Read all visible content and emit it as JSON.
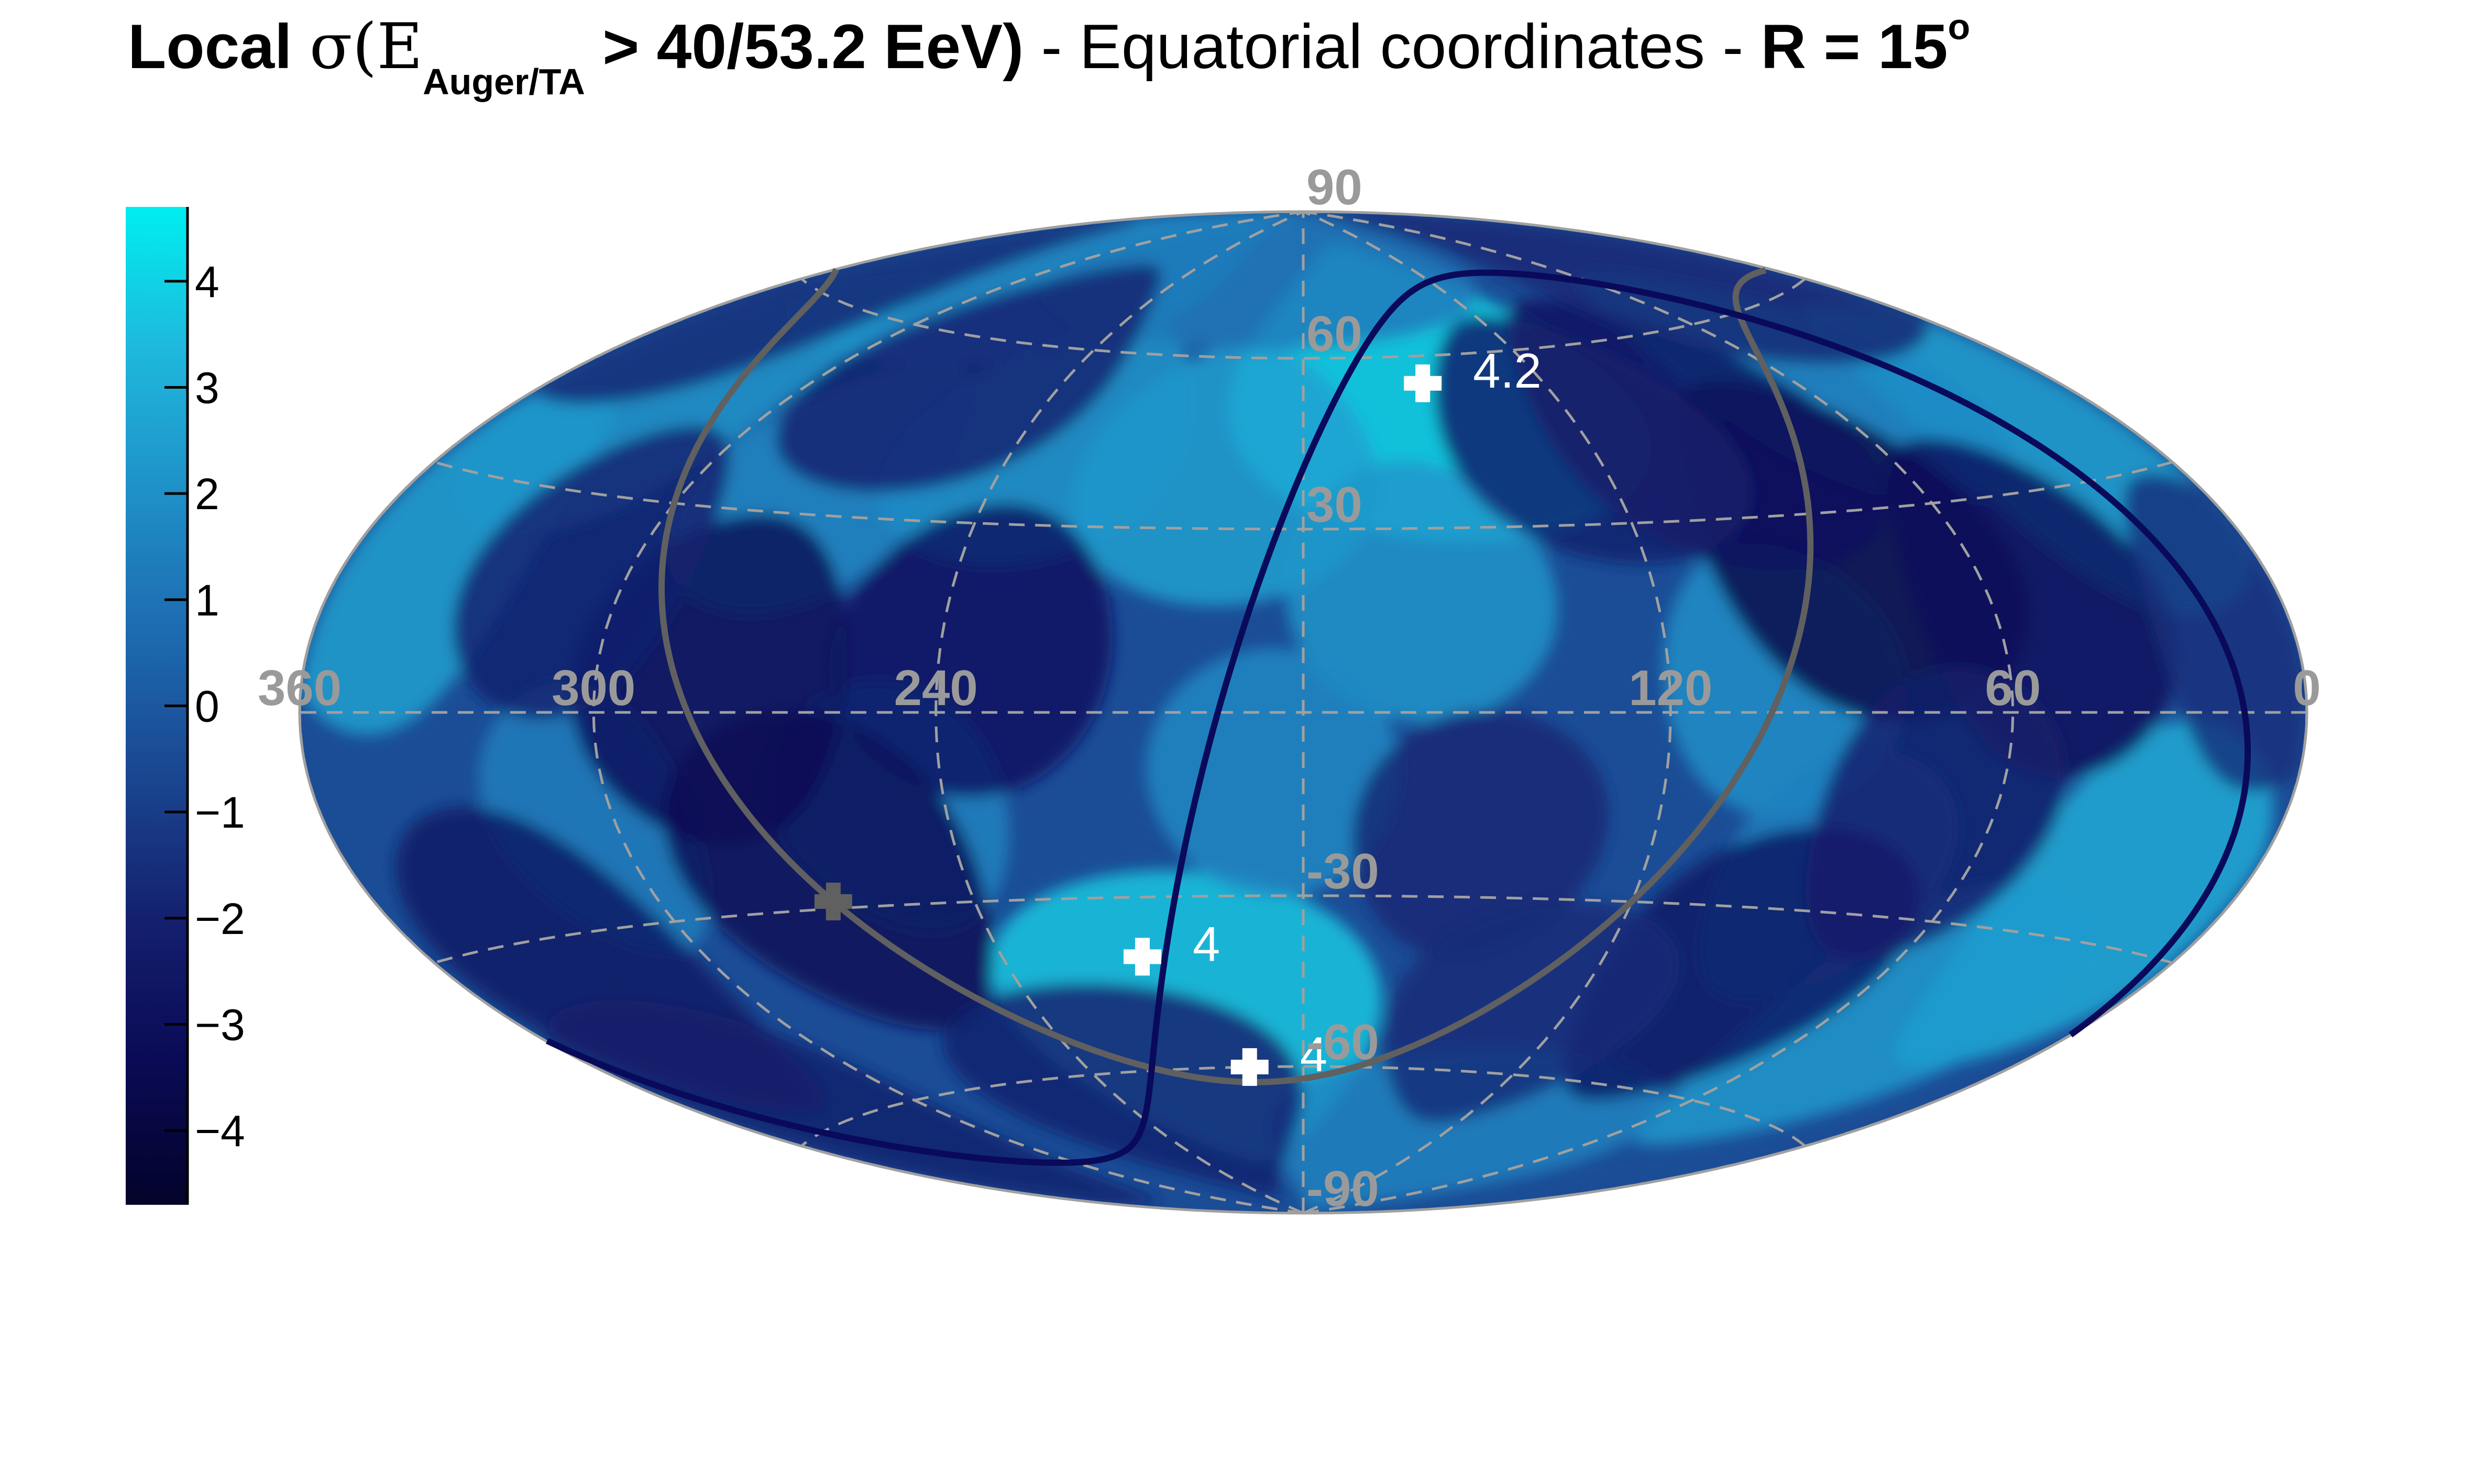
{
  "title": {
    "local": "Local",
    "sigma": "σ(E",
    "subscript": "Auger/TA",
    "threshold": " > 40/53.2 EeV)",
    "middle": " - Equatorial coordinates - ",
    "radius": "R = 15",
    "radius_sup": "o"
  },
  "colors": {
    "grid": "#a0a0a0",
    "galactic_plane": "#606060",
    "supergalactic_plane": "#0a0a5a",
    "marker": "#ffffff",
    "colormap": [
      "#03032a",
      "#0a0a55",
      "#14206e",
      "#1a4690",
      "#1d6ab0",
      "#1f90c8",
      "#1fb8dc",
      "#00eef0"
    ]
  },
  "chart_data": {
    "type": "heatmap",
    "projection": "Hammer-Aitoff",
    "x_ticks": [
      "360",
      "300",
      "240",
      "120",
      "60",
      "0"
    ],
    "x_tick_values": [
      360,
      300,
      240,
      120,
      60,
      0
    ],
    "y_ticks": [
      "90",
      "60",
      "30",
      "-30",
      "-60",
      "-90"
    ],
    "y_tick_values": [
      90,
      60,
      30,
      -30,
      -60,
      -90
    ],
    "xlim": [
      360,
      0
    ],
    "ylim": [
      -90,
      90
    ],
    "colorbar": {
      "range": [
        -4.7,
        4.7
      ],
      "ticks": [
        "4",
        "3",
        "2",
        "1",
        "0",
        "−1",
        "−2",
        "−3",
        "−4"
      ],
      "tick_values": [
        4,
        3,
        2,
        1,
        0,
        -1,
        -2,
        -3,
        -4
      ]
    },
    "hotspots": [
      {
        "ra": 150,
        "dec": 55,
        "sigma": 4.2,
        "label": "4.2"
      },
      {
        "ra": 212,
        "dec": -40,
        "sigma": 4.0,
        "label": "4"
      },
      {
        "ra": 195,
        "dec": -60,
        "sigma": 4.0,
        "label": "4"
      }
    ],
    "galactic_center": {
      "ra": 266.4,
      "dec": -28.9
    },
    "significance_blobs": [
      {
        "ra": 150,
        "dec": 55,
        "sigma": 4.2
      },
      {
        "ra": 205,
        "dec": -52,
        "sigma": 3.8
      },
      {
        "ra": 195,
        "dec": 40,
        "sigma": 2.6
      },
      {
        "ra": 235,
        "dec": 45,
        "sigma": 2.2
      },
      {
        "ra": 300,
        "dec": 75,
        "sigma": 2.0
      },
      {
        "ra": 160,
        "dec": 20,
        "sigma": 2.2
      },
      {
        "ra": 100,
        "dec": 5,
        "sigma": 2.0
      },
      {
        "ra": 185,
        "dec": -10,
        "sigma": 1.8
      },
      {
        "ra": 25,
        "dec": -25,
        "sigma": 3.0
      },
      {
        "ra": 45,
        "dec": -45,
        "sigma": 2.4
      },
      {
        "ra": 20,
        "dec": 35,
        "sigma": 2.6
      },
      {
        "ra": 55,
        "dec": 50,
        "sigma": 1.8
      },
      {
        "ra": 345,
        "dec": 20,
        "sigma": 2.6
      },
      {
        "ra": 330,
        "dec": 45,
        "sigma": 2.2
      },
      {
        "ra": 275,
        "dec": 35,
        "sigma": 1.8
      },
      {
        "ra": 305,
        "dec": -15,
        "sigma": 1.4
      },
      {
        "ra": 250,
        "dec": -15,
        "sigma": 1.6
      },
      {
        "ra": 120,
        "dec": -75,
        "sigma": 1.6
      },
      {
        "ra": 85,
        "dec": -25,
        "sigma": 1.5
      },
      {
        "ra": 200,
        "dec": 80,
        "sigma": 1.2
      },
      {
        "ra": 80,
        "dec": 25,
        "sigma": -3.8
      },
      {
        "ra": 50,
        "dec": 15,
        "sigma": -3.0
      },
      {
        "ra": 95,
        "dec": 45,
        "sigma": -2.8
      },
      {
        "ra": 280,
        "dec": 5,
        "sigma": -3.2
      },
      {
        "ra": 265,
        "dec": -25,
        "sigma": -3.4
      },
      {
        "ra": 330,
        "dec": -35,
        "sigma": -2.6
      },
      {
        "ra": 235,
        "dec": 10,
        "sigma": -2.8
      },
      {
        "ra": 120,
        "dec": 45,
        "sigma": -2.2
      },
      {
        "ra": 90,
        "dec": -40,
        "sigma": -2.6
      },
      {
        "ra": 70,
        "dec": -15,
        "sigma": -2.2
      },
      {
        "ra": 310,
        "dec": 20,
        "sigma": -2.0
      },
      {
        "ra": 25,
        "dec": 70,
        "sigma": -1.8
      },
      {
        "ra": 230,
        "dec": -65,
        "sigma": -2.0
      },
      {
        "ra": 150,
        "dec": -20,
        "sigma": -1.8
      },
      {
        "ra": 340,
        "dec": -60,
        "sigma": -2.2
      },
      {
        "ra": 130,
        "dec": -50,
        "sigma": -1.6
      },
      {
        "ra": 265,
        "dec": 55,
        "sigma": -2.0
      },
      {
        "ra": 355,
        "dec": 60,
        "sigma": -1.8
      },
      {
        "ra": 10,
        "dec": 10,
        "sigma": -1.5
      }
    ]
  }
}
